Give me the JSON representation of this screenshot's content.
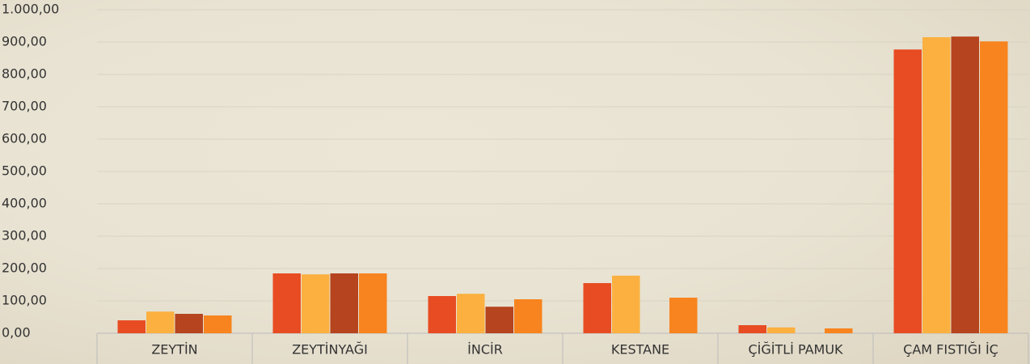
{
  "chart_data": {
    "type": "bar",
    "categories": [
      "ZEYTİN",
      "ZEYTİNYAĞI",
      "İNCİR",
      "KESTANE",
      "ÇİĞİTLİ PAMUK",
      "ÇAM FISTIĞI İÇ"
    ],
    "series": [
      {
        "color": "#e84c22",
        "values": [
          40,
          185,
          115,
          155,
          25,
          877
        ]
      },
      {
        "color": "#fbb040",
        "values": [
          67,
          182,
          122,
          178,
          18,
          915
        ]
      },
      {
        "color": "#b5441f",
        "values": [
          60,
          185,
          82,
          null,
          null,
          917
        ]
      },
      {
        "color": "#f7841e",
        "values": [
          55,
          185,
          105,
          110,
          15,
          902
        ]
      }
    ],
    "ylim": [
      0,
      1000
    ],
    "yticks": [
      {
        "value": 0,
        "label": "0,00"
      },
      {
        "value": 100,
        "label": "100,00"
      },
      {
        "value": 200,
        "label": "200,00"
      },
      {
        "value": 300,
        "label": "300,00"
      },
      {
        "value": 400,
        "label": "400,00"
      },
      {
        "value": 500,
        "label": "500,00"
      },
      {
        "value": 600,
        "label": "600,00"
      },
      {
        "value": 700,
        "label": "700,00"
      },
      {
        "value": 800,
        "label": "800,00"
      },
      {
        "value": 900,
        "label": "900,00"
      },
      {
        "value": 1000,
        "label": "1.000,00"
      }
    ],
    "grid": true
  }
}
